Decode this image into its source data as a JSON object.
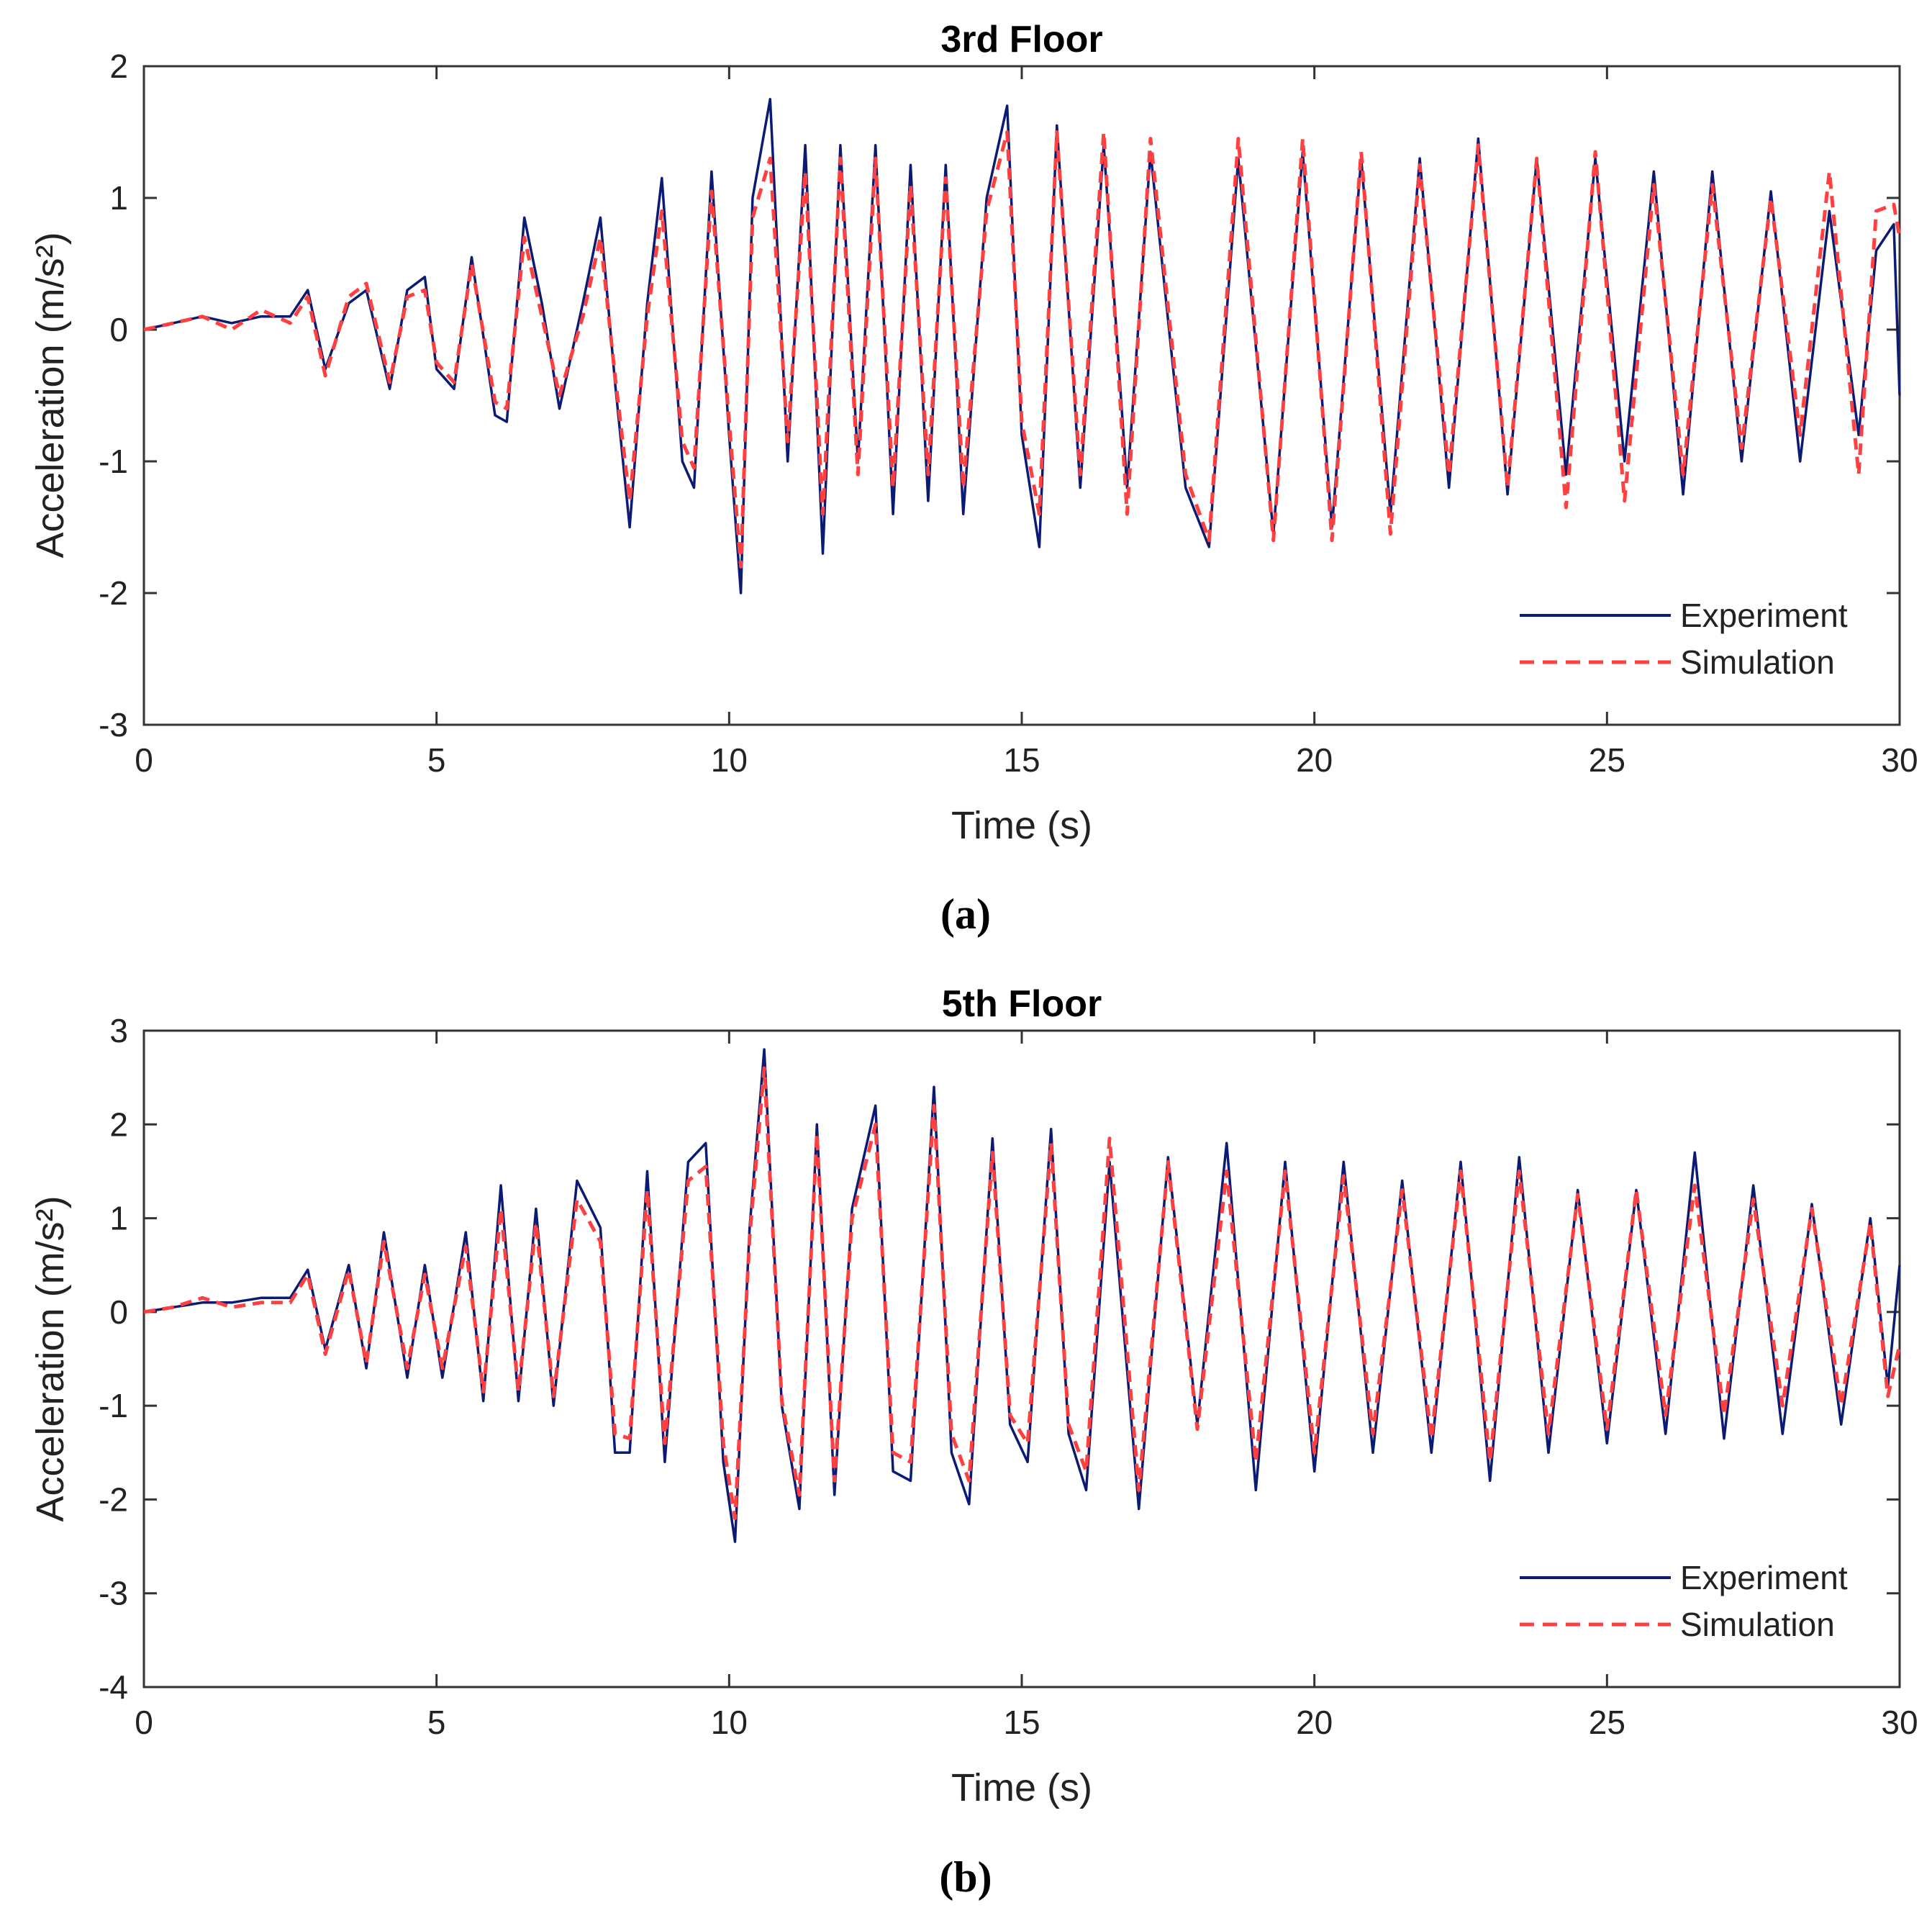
{
  "chart_data": [
    {
      "type": "line",
      "panel_label": "(a)",
      "title": "3rd Floor",
      "xlabel": "Time (s)",
      "ylabel": "Acceleration (m/s²)",
      "xlim": [
        0,
        30
      ],
      "ylim": [
        -3,
        2
      ],
      "xticks": [
        0,
        5,
        10,
        15,
        20,
        25,
        30
      ],
      "yticks": [
        -3,
        -2,
        -1,
        0,
        1,
        2
      ],
      "legend": "bottom-right",
      "series": [
        {
          "name": "Experiment",
          "color": "#0b1a73",
          "style": "solid",
          "x": [
            0,
            0.5,
            1,
            1.5,
            2,
            2.5,
            2.8,
            3.1,
            3.5,
            3.8,
            4.2,
            4.5,
            4.8,
            5,
            5.3,
            5.6,
            6,
            6.2,
            6.5,
            6.8,
            7.1,
            7.5,
            7.8,
            8.05,
            8.3,
            8.6,
            8.85,
            9.2,
            9.4,
            9.7,
            10,
            10.2,
            10.4,
            10.7,
            11,
            11.3,
            11.6,
            11.9,
            12.2,
            12.5,
            12.8,
            13.1,
            13.4,
            13.7,
            14,
            14.4,
            14.75,
            15.0,
            15.3,
            15.6,
            16.0,
            16.4,
            16.8,
            17.2,
            17.8,
            18.2,
            18.7,
            19.3,
            19.8,
            20.3,
            20.8,
            21.3,
            21.8,
            22.3,
            22.8,
            23.3,
            23.8,
            24.3,
            24.8,
            25.3,
            25.8,
            26.3,
            26.8,
            27.3,
            27.8,
            28.3,
            28.8,
            29.3,
            29.6,
            29.9,
            30
          ],
          "y": [
            0,
            0.05,
            0.1,
            0.05,
            0.1,
            0.1,
            0.3,
            -0.3,
            0.2,
            0.3,
            -0.45,
            0.3,
            0.4,
            -0.3,
            -0.45,
            0.55,
            -0.65,
            -0.7,
            0.85,
            0.2,
            -0.6,
            0.2,
            0.85,
            -0.4,
            -1.5,
            0.2,
            1.15,
            -1.0,
            -1.2,
            1.2,
            -0.8,
            -2.0,
            1.0,
            1.75,
            -1.0,
            1.4,
            -1.7,
            1.4,
            -1.0,
            1.4,
            -1.4,
            1.25,
            -1.3,
            1.25,
            -1.4,
            1.0,
            1.7,
            -0.8,
            -1.65,
            1.55,
            -1.2,
            1.4,
            -1.2,
            1.35,
            -1.2,
            -1.65,
            1.3,
            -1.55,
            1.35,
            -1.5,
            1.3,
            -1.4,
            1.3,
            -1.2,
            1.45,
            -1.25,
            1.3,
            -1.1,
            1.3,
            -1.0,
            1.2,
            -1.25,
            1.2,
            -1.0,
            1.05,
            -1.0,
            0.9,
            -0.8,
            0.6,
            0.8,
            -0.5
          ]
        },
        {
          "name": "Simulation",
          "color": "#ff4040",
          "style": "dashed",
          "x": [
            0,
            0.5,
            1,
            1.5,
            2,
            2.5,
            2.8,
            3.1,
            3.5,
            3.8,
            4.2,
            4.5,
            4.8,
            5,
            5.3,
            5.6,
            6,
            6.2,
            6.5,
            6.8,
            7.1,
            7.5,
            7.8,
            8.05,
            8.3,
            8.6,
            8.85,
            9.2,
            9.4,
            9.7,
            10,
            10.2,
            10.4,
            10.7,
            11,
            11.3,
            11.6,
            11.9,
            12.2,
            12.5,
            12.8,
            13.1,
            13.4,
            13.7,
            14,
            14.4,
            14.75,
            15.0,
            15.3,
            15.6,
            16.0,
            16.4,
            16.8,
            17.2,
            17.8,
            18.2,
            18.7,
            19.3,
            19.8,
            20.3,
            20.8,
            21.3,
            21.8,
            22.3,
            22.8,
            23.3,
            23.8,
            24.3,
            24.8,
            25.3,
            25.8,
            26.3,
            26.8,
            27.3,
            27.8,
            28.3,
            28.8,
            29.3,
            29.6,
            29.9,
            30
          ],
          "y": [
            0,
            0.05,
            0.1,
            0.0,
            0.15,
            0.05,
            0.25,
            -0.35,
            0.25,
            0.35,
            -0.4,
            0.25,
            0.3,
            -0.25,
            -0.4,
            0.5,
            -0.55,
            -0.6,
            0.7,
            0.1,
            -0.5,
            0.1,
            0.7,
            -0.35,
            -1.3,
            0.1,
            0.9,
            -0.85,
            -1.05,
            1.05,
            -0.7,
            -1.8,
            0.85,
            1.3,
            -0.85,
            1.2,
            -1.4,
            1.3,
            -1.1,
            1.3,
            -1.2,
            1.1,
            -1.1,
            1.15,
            -1.2,
            0.9,
            1.5,
            -0.7,
            -1.4,
            1.5,
            -1.1,
            1.5,
            -1.4,
            1.45,
            -1.1,
            -1.6,
            1.45,
            -1.6,
            1.45,
            -1.6,
            1.35,
            -1.55,
            1.25,
            -1.1,
            1.4,
            -1.2,
            1.3,
            -1.35,
            1.35,
            -1.3,
            1.1,
            -1.1,
            1.1,
            -0.9,
            1.0,
            -0.8,
            1.2,
            -1.1,
            0.9,
            0.95,
            0.7
          ]
        }
      ]
    },
    {
      "type": "line",
      "panel_label": "(b)",
      "title": "5th Floor",
      "xlabel": "Time (s)",
      "ylabel": "Acceleration (m/s²)",
      "xlim": [
        0,
        30
      ],
      "ylim": [
        -4,
        3
      ],
      "xticks": [
        0,
        5,
        10,
        15,
        20,
        25,
        30
      ],
      "yticks": [
        -4,
        -3,
        -2,
        -1,
        0,
        1,
        2,
        3
      ],
      "legend": "bottom-right",
      "series": [
        {
          "name": "Experiment",
          "color": "#0b1a73",
          "style": "solid",
          "x": [
            0,
            0.5,
            1,
            1.5,
            2,
            2.5,
            2.8,
            3.1,
            3.5,
            3.8,
            4.1,
            4.5,
            4.8,
            5.1,
            5.5,
            5.8,
            6.1,
            6.4,
            6.7,
            7.0,
            7.4,
            7.8,
            8.05,
            8.3,
            8.6,
            8.9,
            9.3,
            9.6,
            9.9,
            10.1,
            10.35,
            10.6,
            10.9,
            11.2,
            11.5,
            11.8,
            12.1,
            12.5,
            12.8,
            13.1,
            13.5,
            13.8,
            14.1,
            14.5,
            14.8,
            15.1,
            15.5,
            15.8,
            16.1,
            16.5,
            17.0,
            17.5,
            18.0,
            18.5,
            19.0,
            19.5,
            20.0,
            20.5,
            21.0,
            21.5,
            22.0,
            22.5,
            23.0,
            23.5,
            24.0,
            24.5,
            25.0,
            25.5,
            26.0,
            26.5,
            27.0,
            27.5,
            28.0,
            28.5,
            29.0,
            29.5,
            29.8,
            30
          ],
          "y": [
            0,
            0.05,
            0.1,
            0.1,
            0.15,
            0.15,
            0.45,
            -0.4,
            0.5,
            -0.6,
            0.85,
            -0.7,
            0.5,
            -0.7,
            0.85,
            -0.95,
            1.35,
            -0.95,
            1.1,
            -1.0,
            1.4,
            0.9,
            -1.5,
            -1.5,
            1.5,
            -1.6,
            1.6,
            1.8,
            -1.6,
            -2.45,
            0.9,
            2.8,
            -1.0,
            -2.1,
            2.0,
            -1.95,
            1.1,
            2.2,
            -1.7,
            -1.8,
            2.4,
            -1.5,
            -2.05,
            1.85,
            -1.2,
            -1.6,
            1.95,
            -1.3,
            -1.9,
            1.6,
            -2.1,
            1.65,
            -1.2,
            1.8,
            -1.9,
            1.6,
            -1.7,
            1.6,
            -1.5,
            1.4,
            -1.5,
            1.6,
            -1.8,
            1.65,
            -1.5,
            1.3,
            -1.4,
            1.3,
            -1.3,
            1.7,
            -1.35,
            1.35,
            -1.3,
            1.15,
            -1.2,
            1.0,
            -0.8,
            0.5
          ]
        },
        {
          "name": "Simulation",
          "color": "#ff4040",
          "style": "dashed",
          "x": [
            0,
            0.5,
            1,
            1.5,
            2,
            2.5,
            2.8,
            3.1,
            3.5,
            3.8,
            4.1,
            4.5,
            4.8,
            5.1,
            5.5,
            5.8,
            6.1,
            6.4,
            6.7,
            7.0,
            7.4,
            7.8,
            8.05,
            8.3,
            8.6,
            8.9,
            9.3,
            9.6,
            9.9,
            10.1,
            10.35,
            10.6,
            10.9,
            11.2,
            11.5,
            11.8,
            12.1,
            12.5,
            12.8,
            13.1,
            13.5,
            13.8,
            14.1,
            14.5,
            14.8,
            15.1,
            15.5,
            15.8,
            16.1,
            16.5,
            17.0,
            17.5,
            18.0,
            18.5,
            19.0,
            19.5,
            20.0,
            20.5,
            21.0,
            21.5,
            22.0,
            22.5,
            23.0,
            23.5,
            24.0,
            24.5,
            25.0,
            25.5,
            26.0,
            26.5,
            27.0,
            27.5,
            28.0,
            28.5,
            29.0,
            29.5,
            29.8,
            30
          ],
          "y": [
            0,
            0.05,
            0.15,
            0.05,
            0.1,
            0.1,
            0.4,
            -0.45,
            0.45,
            -0.55,
            0.75,
            -0.6,
            0.4,
            -0.6,
            0.7,
            -0.85,
            1.1,
            -0.85,
            0.95,
            -0.9,
            1.2,
            0.75,
            -1.3,
            -1.35,
            1.3,
            -1.4,
            1.4,
            1.55,
            -1.4,
            -2.2,
            0.8,
            2.6,
            -0.95,
            -1.95,
            1.9,
            -1.8,
            1.0,
            2.0,
            -1.5,
            -1.6,
            2.2,
            -1.3,
            -1.8,
            1.7,
            -1.1,
            -1.4,
            1.8,
            -1.2,
            -1.7,
            1.85,
            -1.9,
            1.6,
            -1.25,
            1.5,
            -1.6,
            1.5,
            -1.5,
            1.45,
            -1.3,
            1.3,
            -1.35,
            1.5,
            -1.6,
            1.5,
            -1.3,
            1.25,
            -1.25,
            1.3,
            -1.1,
            1.35,
            -1.1,
            1.2,
            -1.0,
            1.1,
            -1.0,
            0.95,
            -0.9,
            -0.35
          ]
        }
      ]
    }
  ]
}
